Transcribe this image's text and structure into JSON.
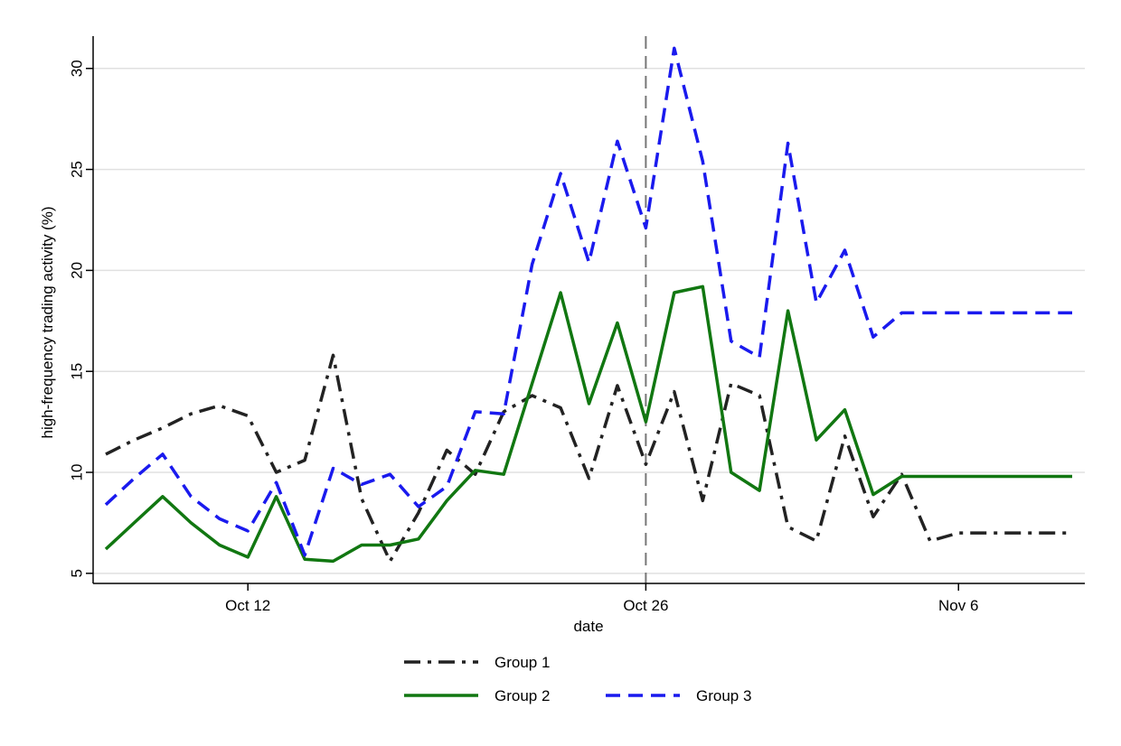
{
  "chart_data": {
    "type": "line",
    "xlabel": "date",
    "ylabel": "high-frequency trading activity (%)",
    "x_tick_labels": [
      {
        "label": "Oct 12",
        "date": "2008-10-12"
      },
      {
        "label": "Oct 26",
        "date": "2008-10-26"
      },
      {
        "label": "Nov 6",
        "date": "2008-11-06"
      }
    ],
    "yticks": [
      5,
      10,
      15,
      20,
      25,
      30
    ],
    "xlim": [
      "2008-10-07",
      "2008-11-10"
    ],
    "ylim": [
      4.5,
      31.6
    ],
    "grid": "horizontal",
    "legend_placement": "bottom",
    "event_line_date": "2008-10-26",
    "x": [
      "2008-10-07",
      "2008-10-08",
      "2008-10-09",
      "2008-10-10",
      "2008-10-11",
      "2008-10-12",
      "2008-10-13",
      "2008-10-14",
      "2008-10-15",
      "2008-10-16",
      "2008-10-17",
      "2008-10-18",
      "2008-10-19",
      "2008-10-20",
      "2008-10-21",
      "2008-10-22",
      "2008-10-23",
      "2008-10-24",
      "2008-10-25",
      "2008-10-26",
      "2008-10-27",
      "2008-10-28",
      "2008-10-29",
      "2008-10-30",
      "2008-10-31",
      "2008-11-01",
      "2008-11-02",
      "2008-11-03",
      "2008-11-04",
      "2008-11-05",
      "2008-11-06",
      "2008-11-07",
      "2008-11-08",
      "2008-11-09",
      "2008-11-10"
    ],
    "series": [
      {
        "name": "Group 1",
        "color": "#222222",
        "dash": "dashdot",
        "values": [
          10.9,
          11.6,
          12.2,
          12.9,
          13.3,
          12.8,
          10.0,
          10.6,
          15.8,
          8.7,
          5.6,
          8.0,
          11.1,
          9.9,
          13.0,
          13.8,
          13.2,
          9.7,
          14.3,
          10.4,
          14.0,
          8.6,
          14.4,
          13.8,
          7.3,
          6.6,
          11.8,
          7.8,
          9.9,
          6.6,
          7.0,
          7.0,
          7.0,
          7.0,
          7.0
        ]
      },
      {
        "name": "Group 2",
        "color": "#117711",
        "dash": "solid",
        "values": [
          6.2,
          7.5,
          8.8,
          7.5,
          6.4,
          5.8,
          8.8,
          5.7,
          5.6,
          6.4,
          6.4,
          6.7,
          8.6,
          10.1,
          9.9,
          14.4,
          18.9,
          13.4,
          17.4,
          12.5,
          18.9,
          19.2,
          10.0,
          9.1,
          18.0,
          11.6,
          13.1,
          8.9,
          9.8,
          9.8,
          9.8,
          9.8,
          9.8,
          9.8,
          9.8
        ]
      },
      {
        "name": "Group 3",
        "color": "#1a1aee",
        "dash": "dash",
        "values": [
          8.4,
          9.7,
          10.9,
          8.8,
          7.7,
          7.1,
          9.5,
          5.9,
          10.2,
          9.4,
          9.9,
          8.3,
          9.3,
          13.0,
          12.9,
          20.3,
          24.8,
          20.4,
          26.4,
          22.1,
          31.0,
          25.4,
          16.5,
          15.7,
          26.3,
          18.4,
          21.0,
          16.7,
          17.9,
          17.9,
          17.9,
          17.9,
          17.9,
          17.9,
          17.9
        ]
      }
    ]
  }
}
